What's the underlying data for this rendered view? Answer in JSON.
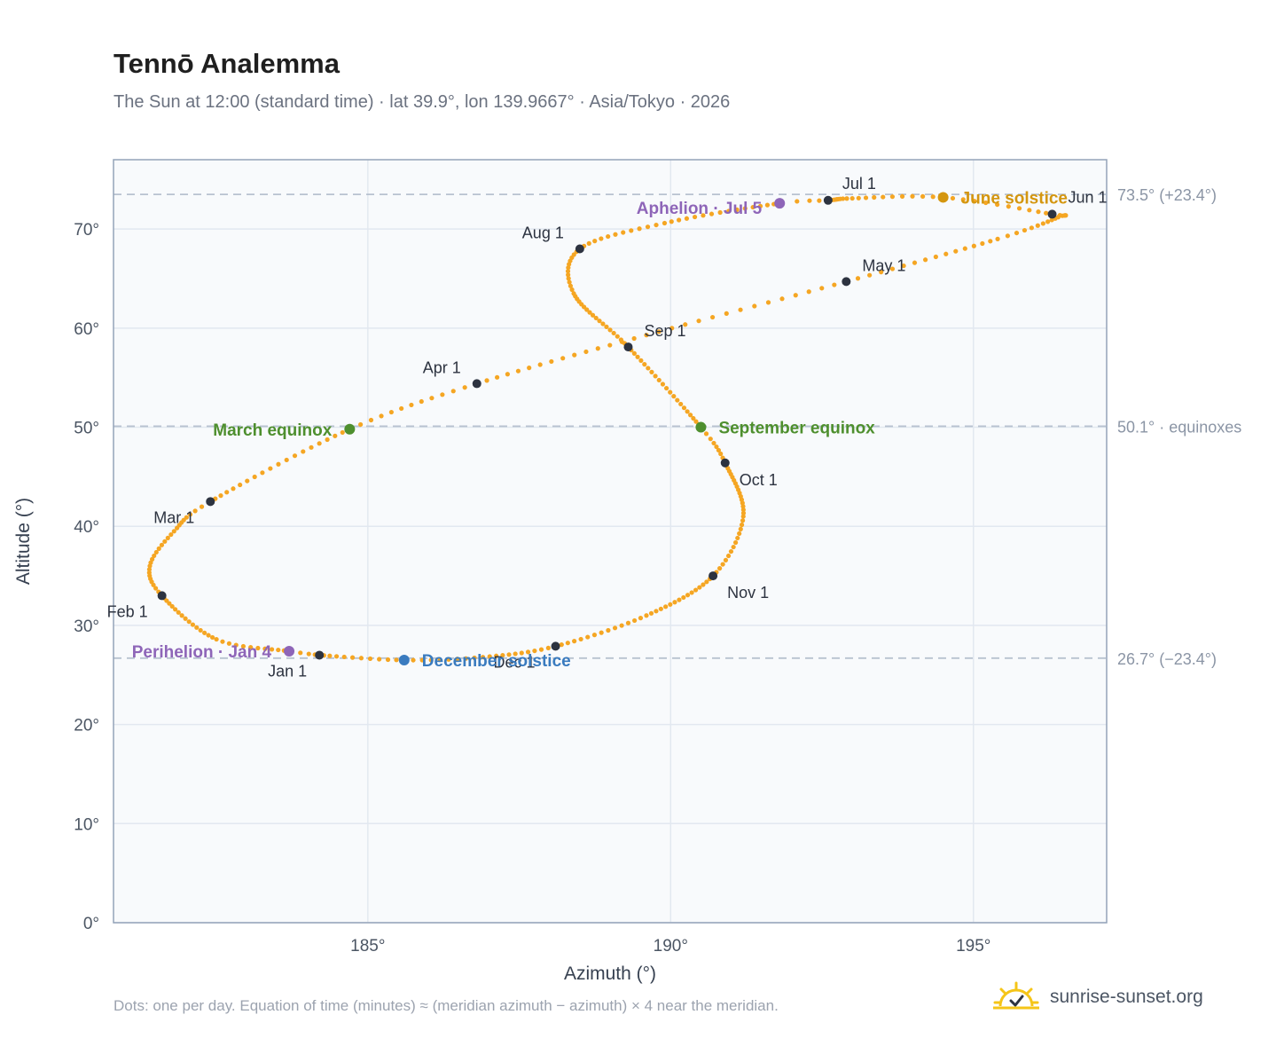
{
  "title": "Tennō Analemma",
  "subtitle": "The Sun at 12:00 (standard time) · lat 39.9°, lon 139.9667° · Asia/Tokyo · 2026",
  "footnote": "Dots: one per day. Equation of time (minutes) ≈ (meridian azimuth − azimuth) × 4 near the meridian.",
  "brand": {
    "name": "sunrise-sunset.org",
    "icon": "sunrise-logo-icon"
  },
  "colors": {
    "curve": "#f5a623",
    "month_marker": "#2d3340",
    "equinox": "#4e8f2e",
    "june_solstice": "#d4960f",
    "december_solstice": "#3a7bbf",
    "apsis": "#8e65b8",
    "plot_bg": "#f8fafc",
    "grid": "#e2e8f0",
    "reference_line": "#b8c2d0"
  },
  "chart_data": {
    "type": "scatter",
    "title": "Tennō Analemma",
    "xlabel": "Azimuth (°)",
    "ylabel": "Altitude (°)",
    "xlim": [
      180.8,
      197.2
    ],
    "ylim": [
      0,
      77
    ],
    "x_ticks": [
      185,
      190,
      195
    ],
    "x_tick_labels": [
      "185°",
      "190°",
      "195°"
    ],
    "y_ticks": [
      0,
      10,
      20,
      30,
      40,
      50,
      60,
      70
    ],
    "y_tick_labels": [
      "0°",
      "10°",
      "20°",
      "30°",
      "40°",
      "50°",
      "60°",
      "70°"
    ],
    "grid": true,
    "series_note": "one point per day of 2026",
    "path_keypoints": [
      {
        "day": 0,
        "az": 184.2,
        "alt": 27.0
      },
      {
        "day": 4,
        "az": 183.7,
        "alt": 27.4
      },
      {
        "day": 15,
        "az": 182.5,
        "alt": 28.6
      },
      {
        "day": 31,
        "az": 181.6,
        "alt": 33.0
      },
      {
        "day": 40,
        "az": 181.4,
        "alt": 36.0
      },
      {
        "day": 50,
        "az": 181.8,
        "alt": 39.5
      },
      {
        "day": 59,
        "az": 182.4,
        "alt": 42.5
      },
      {
        "day": 78,
        "az": 184.7,
        "alt": 49.8
      },
      {
        "day": 90,
        "az": 186.8,
        "alt": 54.4
      },
      {
        "day": 105,
        "az": 189.6,
        "alt": 59.3
      },
      {
        "day": 120,
        "az": 192.9,
        "alt": 64.7
      },
      {
        "day": 135,
        "az": 195.4,
        "alt": 69.0
      },
      {
        "day": 145,
        "az": 196.4,
        "alt": 71.2
      },
      {
        "day": 151,
        "az": 196.3,
        "alt": 71.5
      },
      {
        "day": 162,
        "az": 194.5,
        "alt": 73.2
      },
      {
        "day": 172,
        "az": 193.0,
        "alt": 73.1
      },
      {
        "day": 181,
        "az": 192.6,
        "alt": 72.9
      },
      {
        "day": 185,
        "az": 191.8,
        "alt": 72.6
      },
      {
        "day": 200,
        "az": 189.9,
        "alt": 70.6
      },
      {
        "day": 212,
        "az": 188.5,
        "alt": 68.0
      },
      {
        "day": 225,
        "az": 188.4,
        "alt": 63.5
      },
      {
        "day": 243,
        "az": 189.3,
        "alt": 58.1
      },
      {
        "day": 265,
        "az": 190.5,
        "alt": 50.0
      },
      {
        "day": 273,
        "az": 190.9,
        "alt": 46.4
      },
      {
        "day": 290,
        "az": 191.2,
        "alt": 41.0
      },
      {
        "day": 304,
        "az": 190.7,
        "alt": 35.0
      },
      {
        "day": 320,
        "az": 189.6,
        "alt": 31.0
      },
      {
        "day": 334,
        "az": 188.1,
        "alt": 27.9
      },
      {
        "day": 345,
        "az": 186.9,
        "alt": 26.8
      },
      {
        "day": 354,
        "az": 185.6,
        "alt": 26.5
      },
      {
        "day": 365,
        "az": 184.2,
        "alt": 27.0
      }
    ],
    "month_markers": [
      {
        "label": "Jan 1",
        "az": 184.2,
        "alt": 27.0
      },
      {
        "label": "Feb 1",
        "az": 181.6,
        "alt": 33.0
      },
      {
        "label": "Mar 1",
        "az": 182.4,
        "alt": 42.5
      },
      {
        "label": "Apr 1",
        "az": 186.8,
        "alt": 54.4
      },
      {
        "label": "May 1",
        "az": 192.9,
        "alt": 64.7
      },
      {
        "label": "Jun 1",
        "az": 196.3,
        "alt": 71.5
      },
      {
        "label": "Jul 1",
        "az": 192.6,
        "alt": 72.9
      },
      {
        "label": "Aug 1",
        "az": 188.5,
        "alt": 68.0
      },
      {
        "label": "Sep 1",
        "az": 189.3,
        "alt": 58.1
      },
      {
        "label": "Oct 1",
        "az": 190.9,
        "alt": 46.4
      },
      {
        "label": "Nov 1",
        "az": 190.7,
        "alt": 35.0
      },
      {
        "label": "Dec 1",
        "az": 188.1,
        "alt": 27.9
      }
    ],
    "events": [
      {
        "label": "March equinox",
        "az": 184.7,
        "alt": 49.8,
        "color_key": "equinox"
      },
      {
        "label": "September equinox",
        "az": 190.5,
        "alt": 50.0,
        "color_key": "equinox"
      },
      {
        "label": "June solstice",
        "az": 194.5,
        "alt": 73.2,
        "color_key": "june_solstice"
      },
      {
        "label": "December solstice",
        "az": 185.6,
        "alt": 26.5,
        "color_key": "december_solstice"
      },
      {
        "label": "Perihelion · Jan 4",
        "az": 183.7,
        "alt": 27.4,
        "color_key": "apsis"
      },
      {
        "label": "Aphelion · Jul 5",
        "az": 191.8,
        "alt": 72.6,
        "color_key": "apsis"
      }
    ],
    "reference_lines": [
      {
        "alt": 73.5,
        "label": "73.5° (+23.4°)"
      },
      {
        "alt": 50.1,
        "label": "50.1° · equinoxes"
      },
      {
        "alt": 26.7,
        "label": "26.7° (−23.4°)"
      }
    ]
  }
}
